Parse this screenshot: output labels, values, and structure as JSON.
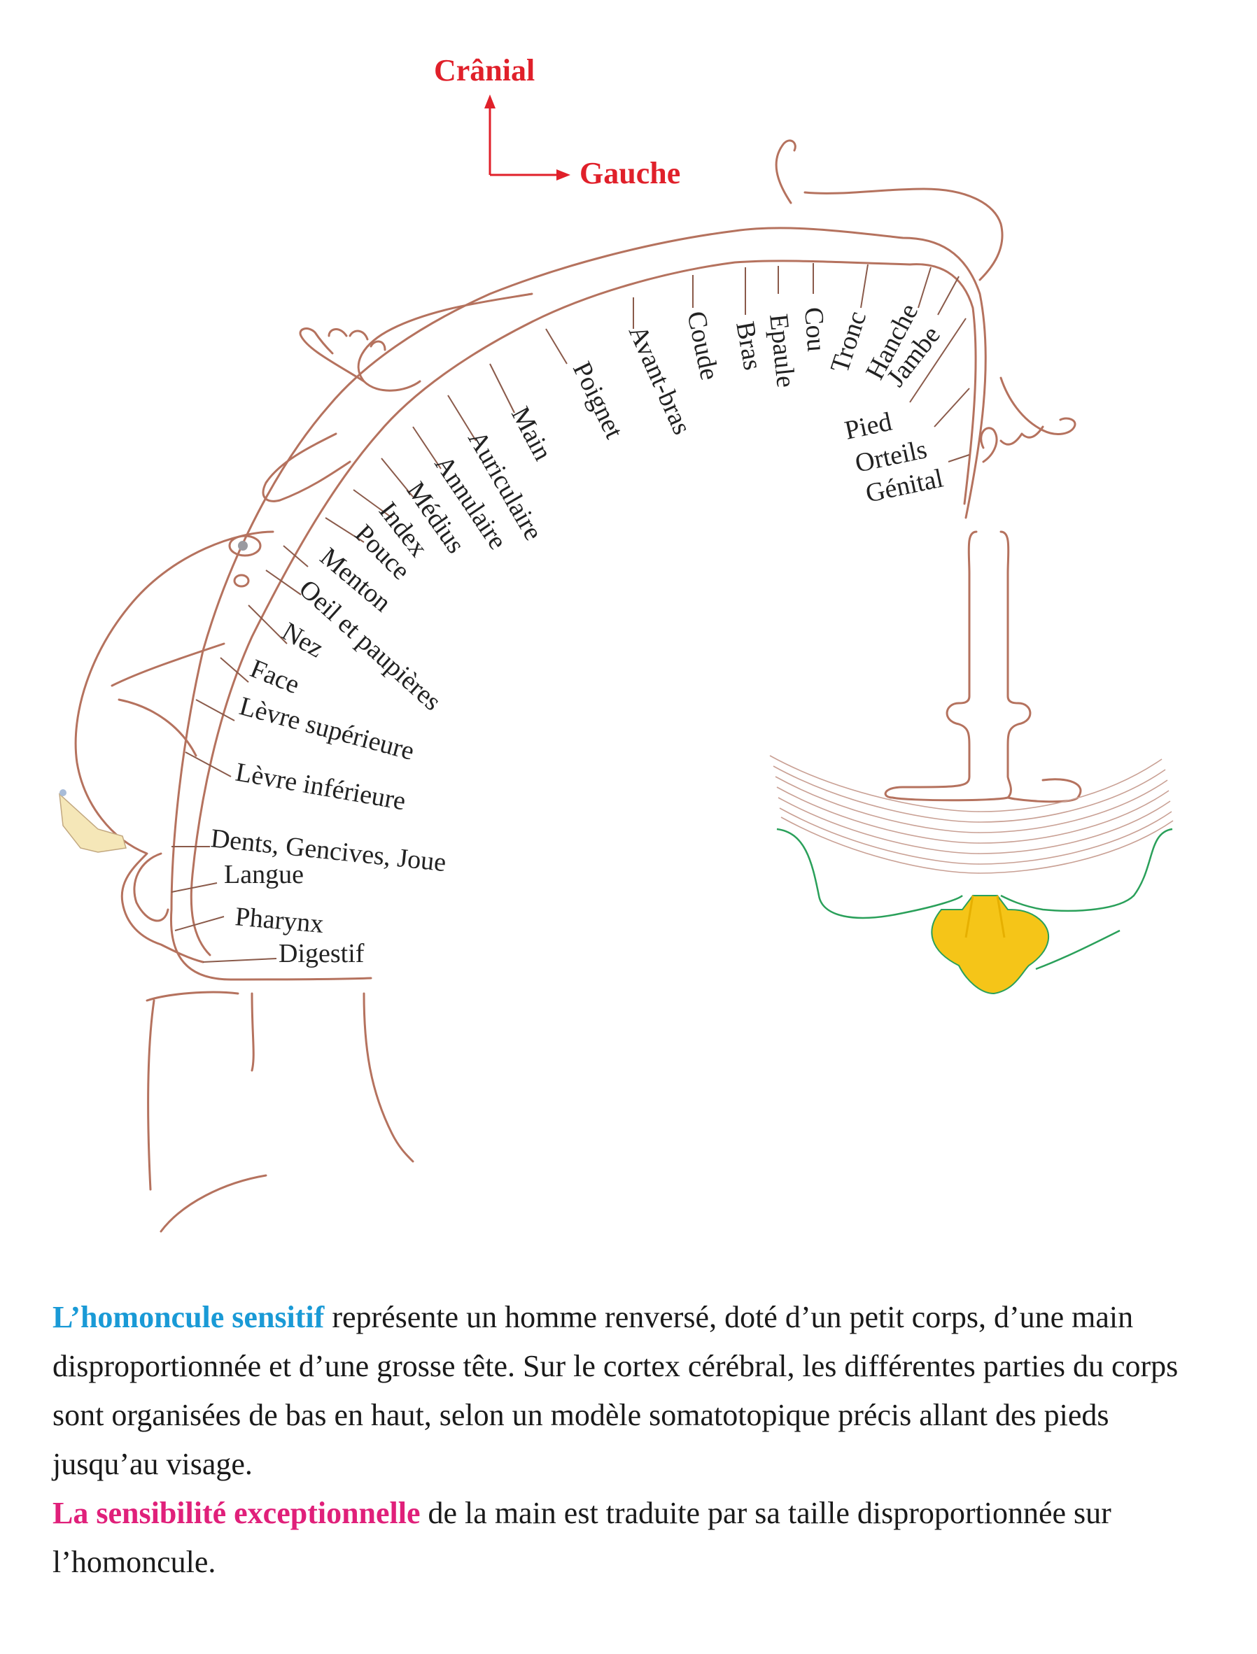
{
  "orientation": {
    "up": "Crânial",
    "right": "Gauche",
    "color": "#e0202a"
  },
  "regions_upper": [
    "Main",
    "Poignet",
    "Avant-bras",
    "Coude",
    "Bras",
    "Epaule",
    "Cou",
    "Tronc",
    "Hanche",
    "Jambe"
  ],
  "regions_lower_leg": [
    "Pied",
    "Orteils",
    "Génital"
  ],
  "regions_hand": [
    "Auriculaire",
    "Annulaire",
    "Médius",
    "Index",
    "Pouce"
  ],
  "regions_face": [
    "Menton",
    "Oeil et paupières",
    "Nez",
    "Face",
    "Lèvre supérieure",
    "Lèvre inférieure",
    "Dents, Gencives, Joue",
    "Langue",
    "Pharynx",
    "Digestif"
  ],
  "caption": {
    "p1_highlight": "L’homoncule sensitif",
    "p1_highlight_color": "#1a9ad6",
    "p1_text": " représente un homme renversé, doté d’un petit corps, d’une main disproportionnée et d’une grosse tête. Sur le cortex cérébral, les différentes parties du corps sont organisées de bas en haut, selon un modèle somatotopique précis allant des pieds jusqu’au visage.",
    "p2_highlight": "La sensibilité exceptionnelle",
    "p2_highlight_color": "#e0207a",
    "p2_text": " de la main est traduite par sa taille disproportionnée sur l’homoncule."
  },
  "colors": {
    "body_outline": "#b5725e",
    "cortex_outline": "#2aa05a",
    "white_matter": "#f5c518",
    "jaw": "#f5e7b8"
  }
}
